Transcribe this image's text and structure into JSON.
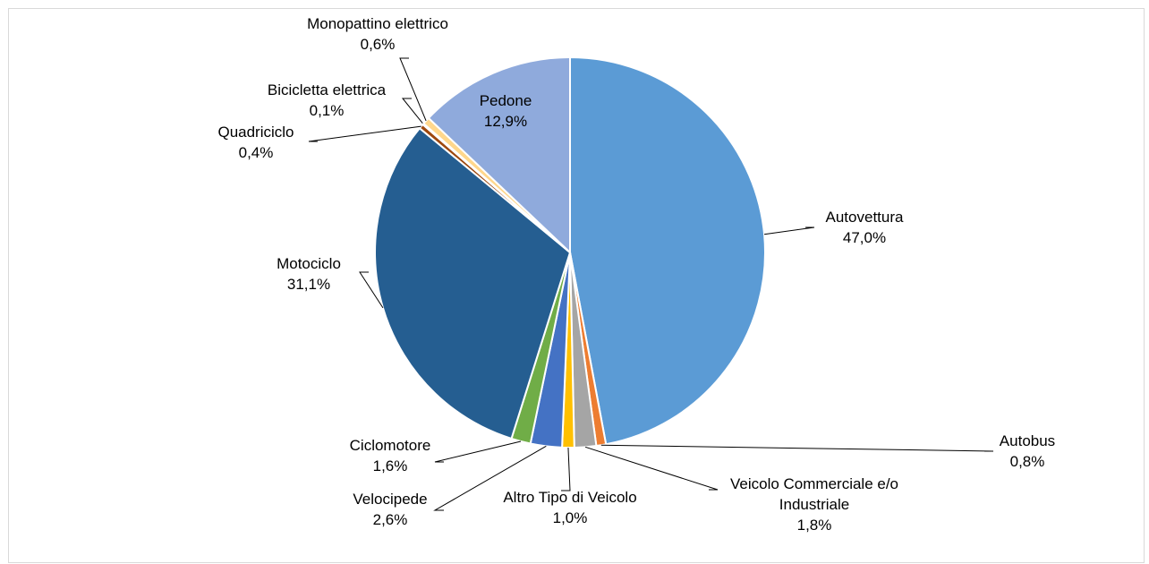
{
  "chart_data": {
    "type": "pie",
    "title": "",
    "slices": [
      {
        "label": "Autovettura",
        "value": 47.0,
        "value_label": "47,0%",
        "color": "#5b9bd5"
      },
      {
        "label": "Autobus",
        "value": 0.8,
        "value_label": "0,8%",
        "color": "#ed7d31"
      },
      {
        "label": "Veicolo Commerciale e/o Industriale",
        "value": 1.8,
        "value_label": "1,8%",
        "color": "#a5a5a5"
      },
      {
        "label": "Altro Tipo di Veicolo",
        "value": 1.0,
        "value_label": "1,0%",
        "color": "#ffc000"
      },
      {
        "label": "Velocipede",
        "value": 2.6,
        "value_label": "2,6%",
        "color": "#4472c4"
      },
      {
        "label": "Ciclomotore",
        "value": 1.6,
        "value_label": "1,6%",
        "color": "#70ad47"
      },
      {
        "label": "Motociclo",
        "value": 31.1,
        "value_label": "31,1%",
        "color": "#255e91"
      },
      {
        "label": "Quadriciclo",
        "value": 0.4,
        "value_label": "0,4%",
        "color": "#9e480e"
      },
      {
        "label": "Bicicletta elettrica",
        "value": 0.1,
        "value_label": "0,1%",
        "color": "#636363"
      },
      {
        "label": "Monopattino elettrico",
        "value": 0.6,
        "value_label": "0,6%",
        "color": "#ffd78c"
      },
      {
        "label": "Pedone",
        "value": 12.9,
        "value_label": "12,9%",
        "color": "#8faadc"
      }
    ]
  }
}
